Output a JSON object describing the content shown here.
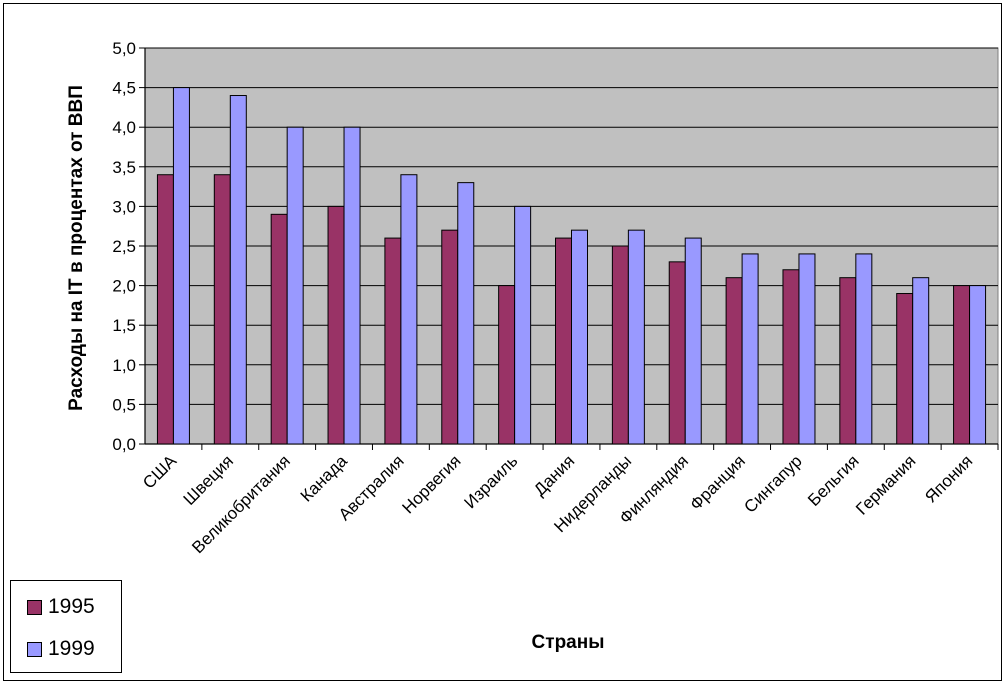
{
  "colors": {
    "plot_bg": "#c0c0c0",
    "s1995": "#993366",
    "s1999": "#9999ff",
    "grid": "#000000"
  },
  "chart_data": {
    "type": "bar",
    "title": "",
    "xlabel": "Страны",
    "ylabel": "Расходы на IT в процентах от ВВП",
    "ylim": [
      0,
      5
    ],
    "ytick_labels": [
      "0,0",
      "0,5",
      "1,0",
      "1,5",
      "2,0",
      "2,5",
      "3,0",
      "3,5",
      "4,0",
      "4,5",
      "5,0"
    ],
    "grid": true,
    "legend_position": "bottom-left",
    "categories": [
      "США",
      "Швеция",
      "Великобритания",
      "Канада",
      "Австралия",
      "Норвегия",
      "Израиль",
      "Дания",
      "Нидерланды",
      "Финляндия",
      "Франция",
      "Сингапур",
      "Бельгия",
      "Германия",
      "Япония"
    ],
    "series": [
      {
        "name": "1995",
        "values": [
          3.4,
          3.4,
          2.9,
          3.0,
          2.6,
          2.7,
          2.0,
          2.6,
          2.5,
          2.3,
          2.1,
          2.2,
          2.1,
          1.9,
          2.0
        ]
      },
      {
        "name": "1999",
        "values": [
          4.5,
          4.4,
          4.0,
          4.0,
          3.4,
          3.3,
          3.0,
          2.7,
          2.7,
          2.6,
          2.4,
          2.4,
          2.4,
          2.1,
          2.0
        ]
      }
    ]
  }
}
